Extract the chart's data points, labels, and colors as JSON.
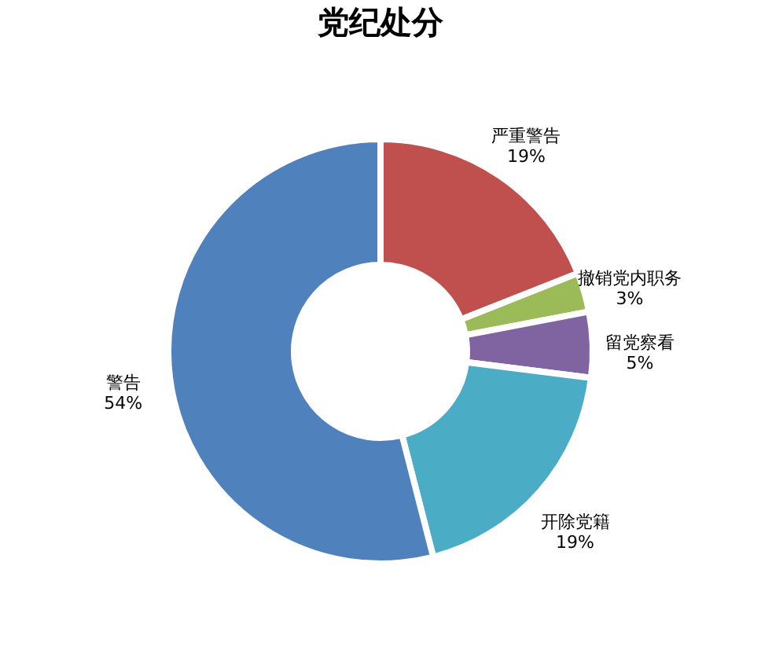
{
  "chart_data": {
    "type": "donut",
    "title": "党纪处分",
    "categories": [
      "严重警告",
      "撤销党内职务",
      "留党察看",
      "开除党籍",
      "警告"
    ],
    "values": [
      19,
      3,
      5,
      19,
      54
    ],
    "value_labels": [
      "19%",
      "3%",
      "5%",
      "19%",
      "54%"
    ],
    "colors": [
      "#c0504d",
      "#9bbb59",
      "#8064a2",
      "#4bacc6",
      "#4f81bd"
    ],
    "legend": false
  }
}
